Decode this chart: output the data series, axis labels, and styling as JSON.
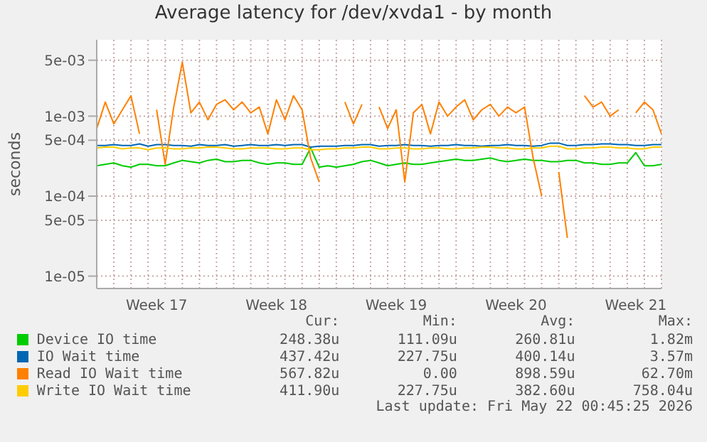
{
  "chart_data": {
    "type": "line",
    "title": "Average latency for /dev/xvda1 - by month",
    "ylabel": "seconds",
    "log": "y",
    "grid": true,
    "legend": "bottom",
    "marker": "none",
    "line_style": "solid",
    "categories": [
      null,
      null,
      null,
      null,
      null,
      null,
      null,
      "Week 17",
      null,
      null,
      null,
      null,
      null,
      null,
      null,
      null,
      null,
      null,
      null,
      null,
      null,
      "Week 18",
      null,
      null,
      null,
      null,
      null,
      null,
      null,
      null,
      null,
      null,
      null,
      null,
      null,
      "Week 19",
      null,
      null,
      null,
      null,
      null,
      null,
      null,
      null,
      null,
      null,
      null,
      null,
      null,
      "Week 20",
      null,
      null,
      null,
      null,
      null,
      null,
      null,
      null,
      null,
      null,
      null,
      null,
      null,
      "Week 21",
      null,
      null,
      null
    ],
    "ylim": [
      7e-06,
      0.009
    ],
    "yticks": [
      {
        "value": 1e-05,
        "label": "1e-05"
      },
      {
        "value": 5e-05,
        "label": "5e-05"
      },
      {
        "value": 0.0001,
        "label": "1e-04"
      },
      {
        "value": 0.0005,
        "label": "5e-04"
      },
      {
        "value": 0.001,
        "label": "1e-03"
      },
      {
        "value": 0.005,
        "label": "5e-03"
      }
    ],
    "series": [
      {
        "name": "Device IO time",
        "color": "#00cc00",
        "values": [
          0.00024,
          0.00025,
          0.00026,
          0.00024,
          0.00023,
          0.00025,
          0.00025,
          0.00024,
          0.00024,
          0.00026,
          0.00028,
          0.00027,
          0.00026,
          0.00028,
          0.00029,
          0.00027,
          0.00027,
          0.00028,
          0.00028,
          0.00026,
          0.00025,
          0.00026,
          0.00026,
          0.00025,
          0.00025,
          0.0004,
          0.00023,
          0.00024,
          0.00023,
          0.00024,
          0.00025,
          0.00027,
          0.00028,
          0.00026,
          0.00024,
          0.00025,
          0.00026,
          0.00025,
          0.00025,
          0.00026,
          0.00027,
          0.00028,
          0.00029,
          0.00028,
          0.00028,
          0.00029,
          0.0003,
          0.00028,
          0.00027,
          0.00028,
          0.00029,
          0.00028,
          0.00028,
          0.00027,
          0.00027,
          0.00028,
          0.00028,
          0.00026,
          0.00026,
          0.00025,
          0.00025,
          0.00026,
          0.00026,
          0.00035,
          0.00024,
          0.00024,
          0.00025
        ]
      },
      {
        "name": "IO Wait time",
        "color": "#0066b3",
        "values": [
          0.00043,
          0.00043,
          0.00044,
          0.00043,
          0.00043,
          0.00045,
          0.00042,
          0.00044,
          0.00044,
          0.00043,
          0.00043,
          0.00042,
          0.00044,
          0.00043,
          0.00043,
          0.00044,
          0.00042,
          0.00043,
          0.00044,
          0.00043,
          0.00043,
          0.00044,
          0.00043,
          0.00044,
          0.00044,
          0.00041,
          0.00042,
          0.00042,
          0.00042,
          0.00043,
          0.00043,
          0.00044,
          0.00044,
          0.00042,
          0.00043,
          0.00043,
          0.00044,
          0.00043,
          0.00043,
          0.00042,
          0.00043,
          0.00043,
          0.00044,
          0.00043,
          0.00043,
          0.00042,
          0.00043,
          0.00043,
          0.00044,
          0.00043,
          0.00043,
          0.00042,
          0.00043,
          0.00046,
          0.00046,
          0.00043,
          0.00043,
          0.00044,
          0.00044,
          0.00045,
          0.00045,
          0.00044,
          0.00044,
          0.00043,
          0.00043,
          0.00044,
          0.00044
        ]
      },
      {
        "name": "Read IO Wait time",
        "color": "#ff8000",
        "values": [
          0.0007,
          0.0015,
          0.0008,
          0.0012,
          0.0018,
          0.0006,
          null,
          0.0012,
          0.00025,
          0.0013,
          0.0047,
          0.0011,
          0.0015,
          0.0009,
          0.0014,
          0.0016,
          0.0012,
          0.0015,
          0.0011,
          0.0013,
          0.0006,
          0.0016,
          0.0009,
          0.0018,
          0.0012,
          0.0003,
          0.00015,
          null,
          null,
          0.0015,
          0.0008,
          0.0014,
          null,
          0.0013,
          0.0007,
          0.0012,
          0.00015,
          0.0011,
          0.0014,
          0.0006,
          0.0015,
          0.001,
          0.0013,
          0.0016,
          0.0009,
          0.0012,
          0.0014,
          0.001,
          0.0013,
          0.0011,
          0.0013,
          0.0003,
          0.0001,
          null,
          0.0002,
          3e-05,
          null,
          0.0018,
          0.0013,
          0.0015,
          0.001,
          0.0012,
          null,
          0.0011,
          0.0015,
          0.0012,
          0.0006
        ]
      },
      {
        "name": "Write IO Wait time",
        "color": "#ffcc00",
        "values": [
          0.0004,
          0.00041,
          0.00041,
          0.00039,
          0.0004,
          0.0004,
          0.00038,
          0.0004,
          0.0004,
          0.00039,
          0.00039,
          0.0004,
          0.0004,
          0.00041,
          0.00041,
          0.0004,
          0.00039,
          0.00039,
          0.0004,
          0.0004,
          0.0004,
          0.00039,
          0.00039,
          0.0004,
          0.0004,
          0.00038,
          0.00038,
          0.00039,
          0.00039,
          0.0004,
          0.0004,
          0.00041,
          0.00041,
          0.00039,
          0.00039,
          0.0004,
          0.0004,
          0.00039,
          0.00039,
          0.0004,
          0.0004,
          0.00039,
          0.00039,
          0.0004,
          0.0004,
          0.00041,
          0.00041,
          0.0004,
          0.0004,
          0.00039,
          0.00039,
          0.0004,
          0.0004,
          0.00042,
          0.00042,
          0.00039,
          0.00039,
          0.0004,
          0.0004,
          0.00041,
          0.00041,
          0.0004,
          0.0004,
          0.00039,
          0.00039,
          0.00041,
          0.00041
        ]
      }
    ],
    "annotations": [
      "Cur:",
      "Min:",
      "Avg:",
      "Max:",
      "248.38u",
      "111.09u",
      "260.81u",
      "1.82m",
      "437.42u",
      "227.75u",
      "400.14u",
      "3.57m",
      "567.82u",
      "0.00",
      "898.59u",
      "62.70m",
      "411.90u",
      "227.75u",
      "382.60u",
      "758.04u",
      "Last update: Fri May 22 00:45:25 2026"
    ]
  }
}
